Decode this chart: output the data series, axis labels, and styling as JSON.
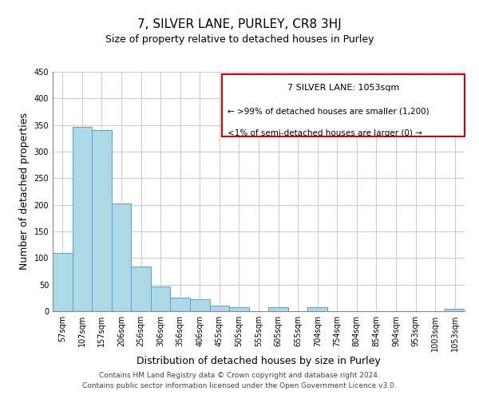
{
  "title": "7, SILVER LANE, PURLEY, CR8 3HJ",
  "subtitle": "Size of property relative to detached houses in Purley",
  "xlabel": "Distribution of detached houses by size in Purley",
  "ylabel": "Number of detached properties",
  "categories": [
    "57sqm",
    "107sqm",
    "157sqm",
    "206sqm",
    "256sqm",
    "306sqm",
    "356sqm",
    "406sqm",
    "455sqm",
    "505sqm",
    "555sqm",
    "605sqm",
    "655sqm",
    "704sqm",
    "754sqm",
    "804sqm",
    "854sqm",
    "904sqm",
    "953sqm",
    "1003sqm",
    "1053sqm"
  ],
  "values": [
    110,
    347,
    341,
    203,
    84,
    46,
    25,
    23,
    11,
    7,
    0,
    7,
    0,
    8,
    0,
    0,
    0,
    0,
    0,
    0,
    4
  ],
  "bar_color": "#add8e6",
  "bar_edge_color": "#5a9fd4",
  "ylim": [
    0,
    450
  ],
  "yticks": [
    0,
    50,
    100,
    150,
    200,
    250,
    300,
    350,
    400,
    450
  ],
  "legend_title": "7 SILVER LANE: 1053sqm",
  "legend_line1": "← >99% of detached houses are smaller (1,200)",
  "legend_line2": "<1% of semi-detached houses are larger (0) →",
  "legend_box_color": "#cc0000",
  "footer_line1": "Contains HM Land Registry data © Crown copyright and database right 2024.",
  "footer_line2": "Contains public sector information licensed under the Open Government Licence v3.0.",
  "background_color": "#ffffff",
  "grid_color": "#cccccc",
  "title_fontsize": 11,
  "subtitle_fontsize": 9,
  "xlabel_fontsize": 9,
  "ylabel_fontsize": 9,
  "tick_fontsize": 7,
  "footer_fontsize": 6.5
}
